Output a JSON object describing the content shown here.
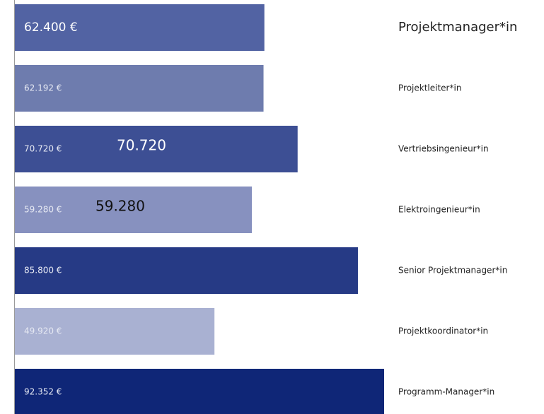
{
  "chart_data": {
    "type": "bar",
    "orientation": "horizontal",
    "categories": [
      "Projektmanager*in",
      "Projektleiter*in",
      "Vertriebsingenieur*in",
      "Elektroingenieur*in",
      "Senior Projektmanager*in",
      "Projektkoordinator*in",
      "Programm-Manager*in"
    ],
    "values": [
      62400,
      62192,
      70720,
      59280,
      85800,
      49920,
      92352
    ],
    "value_labels": [
      "62.400 €",
      "62.192 €",
      "70.720 €",
      "59.280 €",
      "85.800 €",
      "49.920 €",
      "92.352 €"
    ],
    "colors": [
      "#5263a3",
      "#6e7cae",
      "#3d4f94",
      "#8791bf",
      "#263a85",
      "#a9b1d2",
      "#0f2677"
    ],
    "annotations": [
      "70.720",
      "59.280"
    ]
  }
}
